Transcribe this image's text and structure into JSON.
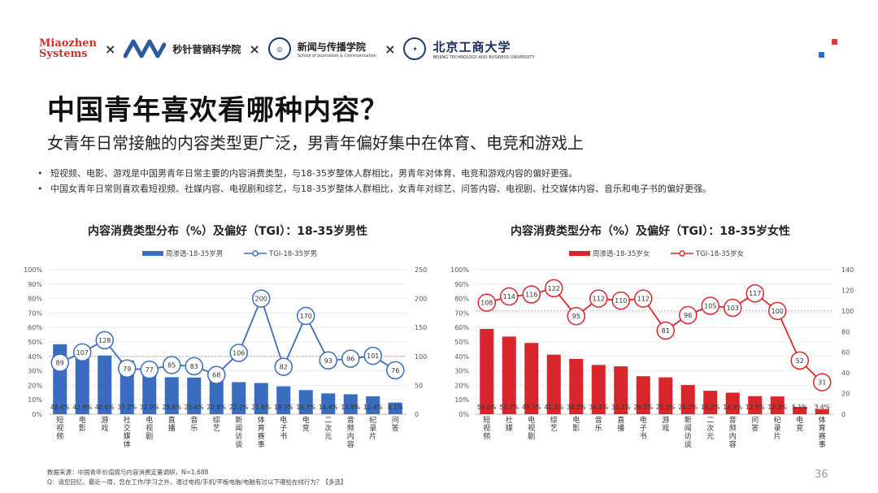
{
  "header": {
    "logo_miaozhen_line1": "Miaozhen",
    "logo_miaozhen_line2": "Systems",
    "times": "×",
    "logo_academy": "秒针营销科学院",
    "logo_school_cn": "新闻与传播学院",
    "logo_school_en": "School of Journalism & Communication",
    "logo_univ_cn": "北京工商大学",
    "logo_univ_en": "BEIJING TECHNOLOGY AND BUSINESS UNIVERSITY"
  },
  "title": "中国青年喜欢看哪种内容？",
  "subtitle": "女青年日常接触的内容类型更广泛，男青年偏好集中在体育、电竞和游戏上",
  "bullets": [
    "短视频、电影、游戏是中国男青年日常主要的内容消费类型，与18-35岁整体人群相比，男青年对体育、电竞和游戏内容的偏好更强。",
    "中国女青年日常则喜欢看短视频、社媒内容、电视剧和综艺，与18-35岁整体人群相比，女青年对综艺、问答内容、电视剧、社交媒体内容、音乐和电子书的偏好更强。"
  ],
  "bullet_mark": "•",
  "footnote": {
    "line1": "数据来源：中国青年价值观与内容消费定量调研，N=1,688",
    "line2": "Q：请您回忆，最近一周，您在工作/学习之外，通过电视/手机/平板电脑/电脑有过以下哪些在线行为？【多选】"
  },
  "page_number": "36",
  "chart_data": [
    {
      "type": "bar+line",
      "title": "内容消费类型分布（%）及偏好（TGI）：18-35岁男性",
      "legend": [
        "周渗透-18-35岁男",
        "TGI-18-35岁男"
      ],
      "color": "#3a6cc0",
      "categories": [
        "短视频",
        "电影",
        "游戏",
        "社交媒体",
        "电视剧",
        "直播",
        "音乐",
        "综艺",
        "新闻访谈",
        "体育赛事",
        "电子书",
        "电竞",
        "二次元",
        "音频内容",
        "纪录片",
        "问答"
      ],
      "bar_labels": [
        "48.4%",
        "42.9%",
        "40.6%",
        "37.2%",
        "32.9%",
        "25.6%",
        "25.4%",
        "22.8%",
        "22.2%",
        "21.6%",
        "19.3%",
        "16.7%",
        "14.4%",
        "13.8%",
        "12.4%",
        "8.1%"
      ],
      "values": [
        48.4,
        42.9,
        40.6,
        37.2,
        32.9,
        25.6,
        25.4,
        22.8,
        22.2,
        21.6,
        19.3,
        16.7,
        14.4,
        13.8,
        12.4,
        8.1
      ],
      "tgi": [
        89,
        107,
        128,
        79,
        77,
        85,
        83,
        68,
        106,
        200,
        82,
        170,
        93,
        96,
        101,
        76
      ],
      "y_left_ticks": [
        "0%",
        "10%",
        "20%",
        "30%",
        "40%",
        "50%",
        "60%",
        "70%",
        "80%",
        "90%",
        "100%"
      ],
      "y_left_max": 100,
      "y_right_ticks": [
        "0",
        "50",
        "100",
        "150",
        "200",
        "250"
      ],
      "y_right_max": 250,
      "ref_line": 100
    },
    {
      "type": "bar+line",
      "title": "内容消费类型分布（%）及偏好（TGI）：18-35岁女性",
      "legend": [
        "周渗透-18-35岁女",
        "TGI-18-35岁女"
      ],
      "color": "#d9262c",
      "categories": [
        "短视频",
        "社媒",
        "电视剧",
        "综艺",
        "电影",
        "音乐",
        "直播",
        "电子书",
        "游戏",
        "新闻访谈",
        "二次元",
        "音频内容",
        "问答",
        "纪录片",
        "电竞",
        "体育赛事"
      ],
      "bar_labels": [
        "59.0%",
        "53.7%",
        "49.3%",
        "41.2%",
        "38.2%",
        "34.1%",
        "33.1%",
        "26.3%",
        "25.5%",
        "20.2%",
        "16.2%",
        "14.9%",
        "12.5%",
        "12.3%",
        "5.1%",
        "3.4%"
      ],
      "values": [
        59.0,
        53.7,
        49.3,
        41.2,
        38.2,
        34.1,
        33.1,
        26.3,
        25.5,
        20.2,
        16.2,
        14.9,
        12.5,
        12.3,
        5.1,
        3.4
      ],
      "tgi": [
        108,
        114,
        116,
        122,
        95,
        112,
        110,
        112,
        81,
        96,
        105,
        103,
        117,
        100,
        52,
        31
      ],
      "y_left_ticks": [
        "0%",
        "10%",
        "20%",
        "30%",
        "40%",
        "50%",
        "60%",
        "70%",
        "80%",
        "90%",
        "100%"
      ],
      "y_left_max": 100,
      "y_right_ticks": [
        "0",
        "20",
        "40",
        "60",
        "80",
        "100",
        "120",
        "140"
      ],
      "y_right_max": 140,
      "ref_line": 100
    }
  ]
}
